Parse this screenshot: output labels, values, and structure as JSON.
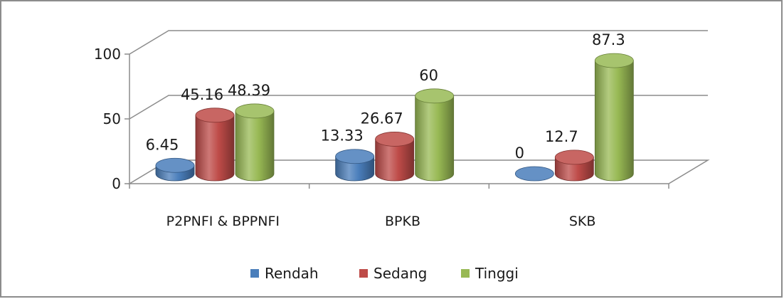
{
  "chart_data": {
    "type": "bar",
    "style": "3d-cylinder",
    "categories": [
      "P2PNFI & BPPNFI",
      "BPKB",
      "SKB"
    ],
    "series": [
      {
        "name": "Rendah",
        "values": [
          6.45,
          13.33,
          0
        ],
        "color": "#4a7ebb"
      },
      {
        "name": "Sedang",
        "values": [
          45.16,
          26.67,
          12.7
        ],
        "color": "#be4b48"
      },
      {
        "name": "Tinggi",
        "values": [
          48.39,
          60,
          87.3
        ],
        "color": "#98b954"
      }
    ],
    "data_labels": [
      [
        "6.45",
        "13.33",
        "0"
      ],
      [
        "45.16",
        "26.67",
        "12.7"
      ],
      [
        "48.39",
        "60",
        "87.3"
      ]
    ],
    "y_ticks": [
      "0",
      "50",
      "100"
    ],
    "ylim": [
      0,
      100
    ],
    "grid": true,
    "legend_position": "bottom",
    "title": "",
    "xlabel": "",
    "ylabel": ""
  }
}
